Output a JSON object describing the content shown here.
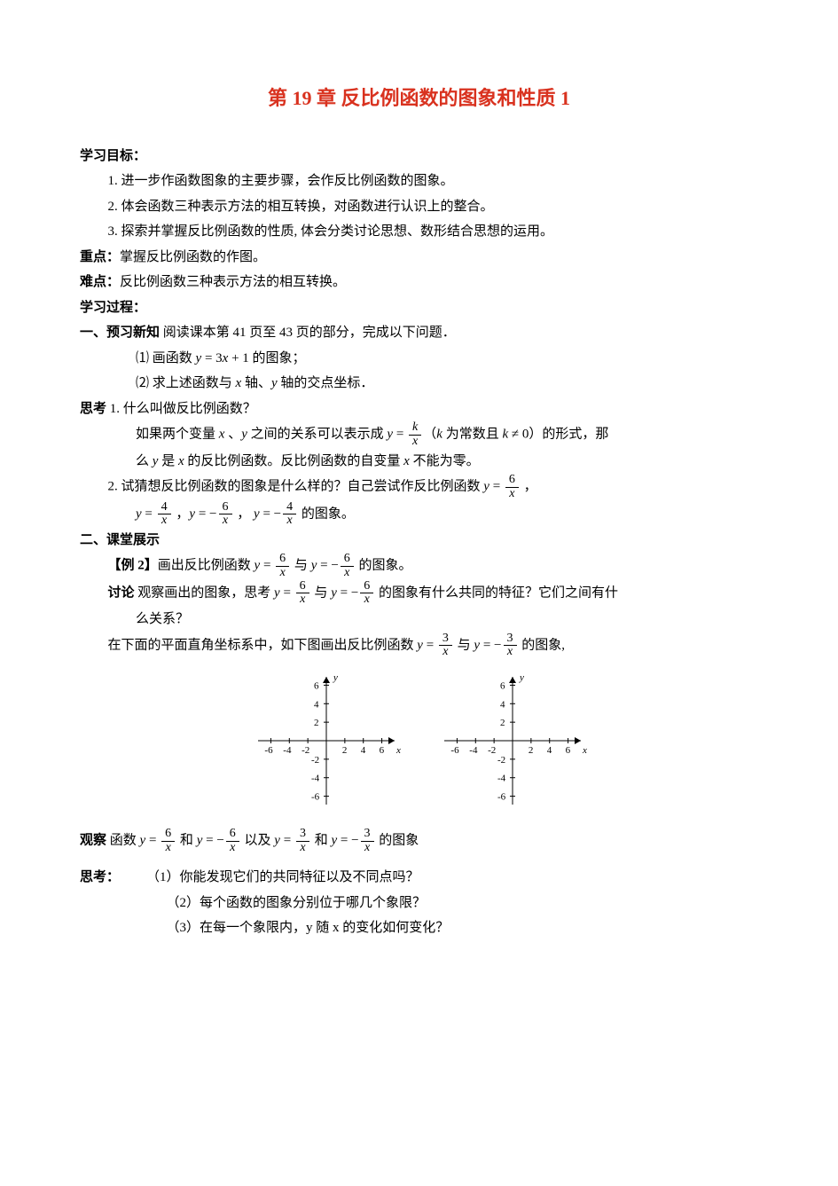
{
  "title": "第 19 章  反比例函数的图象和性质 1",
  "title_color": "#d9321f",
  "text_color": "#000000",
  "background_color": "#ffffff",
  "sections": {
    "objectives_label": "学习目标：",
    "obj1": "1. 进一步作函数图象的主要步骤，会作反比例函数的图象。",
    "obj2": "2. 体会函数三种表示方法的相互转换，对函数进行认识上的整合。",
    "obj3": "3. 探索并掌握反比例函数的性质, 体会分类讨论思想、数形结合思想的运用。",
    "key_label": "重点：",
    "key_text": "掌握反比例函数的作图。",
    "diff_label": "难点：",
    "diff_text": "反比例函数三种表示方法的相互转换。",
    "process_label": "学习过程：",
    "preview_label": "一、预习新知",
    "preview_text": "   阅读课本第  41 页至 43 页的部分，完成以下问题．",
    "item1_label": "⑴  画函数 ",
    "item1_mathA": "y",
    "item1_math_eq": " = 3",
    "item1_mathB": "x",
    "item1_math_plus": " + 1",
    "item1_tail": " 的图象；",
    "item2_label": "⑵  求上述函数与 ",
    "item2_x": "x",
    "item2_mid": " 轴、",
    "item2_y": "y",
    "item2_tail": " 轴的交点坐标．",
    "think_label": "思考",
    "think1_label": " 1. 什么叫做反比例函数？",
    "think1_text_a": "如果两个变量 ",
    "think1_x": "x",
    "think1_text_b": " 、",
    "think1_y": "y",
    "think1_text_c": " 之间的关系可以表示成 ",
    "think1_eq_y": "y",
    "think1_eq_eq": " = ",
    "think1_frac_num": "k",
    "think1_frac_den": "x",
    "think1_text_d": "（",
    "think1_k": "k",
    "think1_text_e": " 为常数且 ",
    "think1_k2": "k",
    "think1_neq": " ≠ 0",
    "think1_text_f": "）的形式，那",
    "think1_cont_a": "么 ",
    "think1_cont_y": "y",
    "think1_cont_b": " 是 ",
    "think1_cont_x": "x",
    "think1_cont_c": " 的反比例函数。反比例函数的自变量 ",
    "think1_cont_x2": "x",
    "think1_cont_d": " 不能为零。",
    "think2_a": "2. 试猜想反比例函数的图象是什么样的？自己尝试作反比例函数  ",
    "think2_y1": "y",
    "think2_eq1": " = ",
    "think2_num1": "6",
    "think2_den1": "x",
    "think2_tail1": " ，",
    "think2_line2_a": "",
    "think2_y2": "y",
    "think2_eq2": " = ",
    "think2_num2": "4",
    "think2_den2": "x",
    "think2_line2_b": " ，",
    "think2_y3": "y",
    "think2_eq3": " = −",
    "think2_num3": "6",
    "think2_den3": "x",
    "think2_line2_c": " ，   ",
    "think2_y4": "y",
    "think2_eq4": " = −",
    "think2_num4": "4",
    "think2_den4": "x",
    "think2_line2_d": "  的图象。",
    "classroom_label": "二、课堂展示",
    "ex2_label": "【例 2】",
    "ex2_text_a": "画出反比例函数  ",
    "ex2_y1": "y",
    "ex2_eq1": " = ",
    "ex2_num1": "6",
    "ex2_den1": "x",
    "ex2_text_b": "  与 ",
    "ex2_y2": "y",
    "ex2_eq2": " = −",
    "ex2_num2": "6",
    "ex2_den2": "x",
    "ex2_text_c": "  的图象。",
    "discuss_label": "讨论",
    "discuss_a": "  观察画出的图象，思考 ",
    "discuss_y1": "y",
    "discuss_eq1": " = ",
    "discuss_num1": "6",
    "discuss_den1": "x",
    "discuss_b": " 与 ",
    "discuss_y2": "y",
    "discuss_eq2": " = −",
    "discuss_num2": "6",
    "discuss_den2": "x",
    "discuss_c": " 的图象有什么共同的特征？它们之间有什",
    "discuss_cont": "么关系？",
    "drawline_a": "在下面的平面直角坐标系中，如下图画出反比例函数  ",
    "drawline_y1": "y",
    "drawline_eq1": " = ",
    "drawline_num1": "3",
    "drawline_den1": "x",
    "drawline_b": "  与 ",
    "drawline_y2": "y",
    "drawline_eq2": " = −",
    "drawline_num2": "3",
    "drawline_den2": "x",
    "drawline_c": "  的图象,",
    "observe_label": "观察",
    "observe_a": "     函数 ",
    "observe_y1": "y",
    "observe_eq1": " = ",
    "observe_num1": "6",
    "observe_den1": "x",
    "observe_b": " 和 ",
    "observe_y2": "y",
    "observe_eq2": " = −",
    "observe_num2": "6",
    "observe_den2": "x",
    "observe_c": "  以及 ",
    "observe_y3": "y",
    "observe_eq3": " = ",
    "observe_num3": "3",
    "observe_den3": "x",
    "observe_d": "  和 ",
    "observe_y4": "y",
    "observe_eq4": " = −",
    "observe_num4": "3",
    "observe_den4": "x",
    "observe_e": "  的图象",
    "think3_label": "思考：",
    "think3_q1": "（1）你能发现它们的共同特征以及不同点吗？",
    "think3_q2": "（2）每个函数的图象分别位于哪几个象限？",
    "think3_q3": "（3）在每一个象限内，y 随 x 的变化如何变化？"
  },
  "graph": {
    "axis_color": "#000000",
    "background_color": "#ffffff",
    "xlabel": "x",
    "ylabel": "y",
    "x_ticks_pos": [
      "2",
      "4",
      "6"
    ],
    "x_ticks_neg": [
      "-6",
      "-4",
      "-2"
    ],
    "y_ticks_pos": [
      "2",
      "4",
      "6"
    ],
    "y_ticks_neg": [
      "-2",
      "-4",
      "-6"
    ],
    "axis_range": [
      -7,
      7
    ],
    "tick_step": 2,
    "font_size": 11,
    "width": 170,
    "height": 160
  }
}
